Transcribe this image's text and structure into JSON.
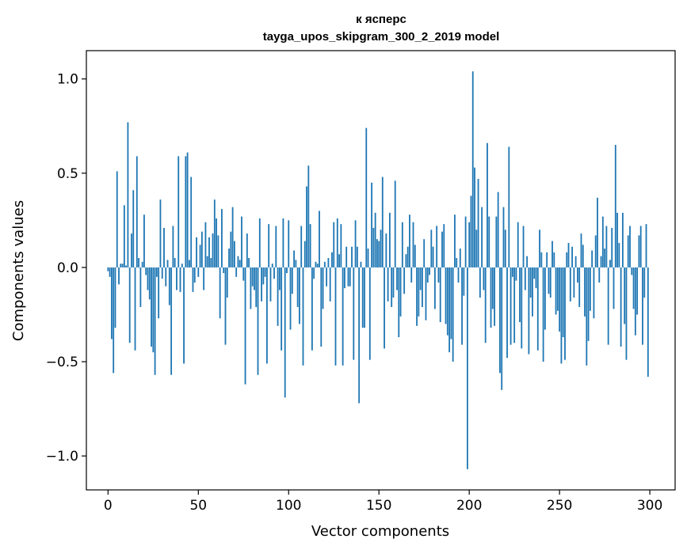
{
  "title": {
    "line1": "к ясперс",
    "line2": "tayga_upos_skipgram_300_2_2019 model"
  },
  "chart_data": {
    "type": "bar",
    "title": "к ясперс\ntayga_upos_skipgram_300_2_2019 model",
    "xlabel": "Vector components",
    "ylabel": "Components values",
    "xlim": [
      -12,
      314
    ],
    "ylim": [
      -1.18,
      1.15
    ],
    "xticks": [
      0,
      50,
      100,
      150,
      200,
      250,
      300
    ],
    "xtick_labels": [
      "0",
      "50",
      "100",
      "150",
      "200",
      "250",
      "300"
    ],
    "yticks": [
      1.0,
      0.5,
      0.0,
      -0.5,
      -1.0
    ],
    "ytick_labels": [
      "1.0",
      "0.5",
      "0.0",
      "−0.5",
      "−1.0"
    ],
    "grid": false,
    "bar_color": "#1f77b4",
    "x": "indices 0..299",
    "values": [
      -0.02,
      -0.05,
      -0.38,
      -0.56,
      -0.32,
      0.51,
      -0.09,
      0.02,
      0.02,
      0.33,
      0.01,
      0.77,
      -0.4,
      0.18,
      0.41,
      -0.44,
      0.59,
      0.05,
      -0.21,
      0.03,
      0.28,
      -0.04,
      -0.12,
      -0.17,
      -0.42,
      -0.45,
      -0.57,
      -0.05,
      -0.27,
      0.36,
      -0.06,
      0.21,
      -0.1,
      0.04,
      -0.2,
      -0.57,
      0.22,
      0.05,
      -0.12,
      0.59,
      -0.13,
      0.02,
      -0.51,
      0.59,
      0.61,
      0.04,
      0.48,
      -0.13,
      -0.08,
      0.16,
      -0.05,
      0.12,
      0.19,
      -0.12,
      0.24,
      0.06,
      0.16,
      0.05,
      0.18,
      0.36,
      0.26,
      0.17,
      -0.27,
      0.31,
      -0.03,
      -0.41,
      -0.16,
      0.1,
      0.19,
      0.32,
      0.14,
      -0.05,
      0.06,
      0.04,
      0.27,
      -0.07,
      -0.62,
      0.18,
      0.05,
      -0.22,
      -0.1,
      -0.12,
      -0.21,
      -0.57,
      0.26,
      -0.18,
      -0.09,
      -0.05,
      -0.51,
      0.23,
      -0.18,
      0.02,
      -0.06,
      0.22,
      -0.31,
      -0.12,
      -0.44,
      0.26,
      -0.69,
      -0.03,
      0.25,
      -0.33,
      -0.14,
      0.09,
      0.04,
      -0.21,
      -0.3,
      0.22,
      -0.52,
      0.14,
      0.43,
      0.54,
      0.23,
      -0.44,
      -0.06,
      0.03,
      0.02,
      0.3,
      -0.42,
      -0.22,
      0.03,
      -0.1,
      0.05,
      -0.18,
      0.08,
      0.24,
      -0.52,
      0.26,
      0.07,
      0.23,
      -0.52,
      -0.11,
      0.11,
      -0.1,
      -0.1,
      0.11,
      -0.49,
      0.25,
      0.11,
      -0.72,
      0.03,
      -0.32,
      -0.32,
      0.74,
      0.1,
      -0.49,
      0.45,
      0.21,
      0.29,
      0.15,
      0.14,
      0.2,
      0.48,
      -0.43,
      0.18,
      -0.18,
      0.29,
      -0.21,
      -0.16,
      0.46,
      -0.12,
      -0.37,
      -0.26,
      0.24,
      -0.14,
      0.07,
      0.11,
      0.28,
      -0.08,
      0.24,
      0.12,
      -0.31,
      -0.26,
      -0.12,
      -0.21,
      0.15,
      -0.28,
      -0.08,
      -0.04,
      0.2,
      0.11,
      -0.22,
      0.22,
      -0.08,
      -0.29,
      0.19,
      0.23,
      -0.3,
      -0.36,
      -0.45,
      -0.38,
      -0.5,
      0.28,
      0.05,
      -0.08,
      0.1,
      -0.41,
      -0.15,
      0.27,
      -1.07,
      0.24,
      0.38,
      1.04,
      0.53,
      0.2,
      0.47,
      -0.16,
      0.32,
      -0.12,
      -0.4,
      0.66,
      0.27,
      -0.32,
      -0.22,
      -0.31,
      0.27,
      0.4,
      -0.56,
      -0.65,
      0.32,
      0.2,
      -0.48,
      0.64,
      -0.41,
      -0.05,
      -0.4,
      -0.07,
      0.24,
      -0.29,
      -0.43,
      0.22,
      -0.12,
      0.06,
      -0.46,
      -0.16,
      -0.26,
      -0.06,
      -0.11,
      -0.44,
      0.2,
      0.08,
      -0.5,
      -0.33,
      0.08,
      -0.14,
      -0.16,
      0.14,
      0.08,
      -0.25,
      -0.23,
      -0.34,
      -0.51,
      -0.37,
      -0.49,
      0.08,
      0.13,
      -0.18,
      0.11,
      -0.16,
      0.06,
      -0.08,
      -0.21,
      0.18,
      0.12,
      -0.26,
      -0.52,
      -0.39,
      -0.23,
      0.09,
      -0.27,
      0.17,
      0.37,
      -0.08,
      0.06,
      0.27,
      0.1,
      0.22,
      -0.41,
      0.04,
      0.21,
      -0.22,
      0.65,
      0.29,
      0.13,
      -0.42,
      0.29,
      -0.3,
      -0.49,
      0.17,
      0.22,
      -0.04,
      -0.22,
      -0.36,
      -0.25,
      0.17,
      0.22,
      -0.41,
      -0.16,
      0.23,
      -0.58
    ]
  }
}
